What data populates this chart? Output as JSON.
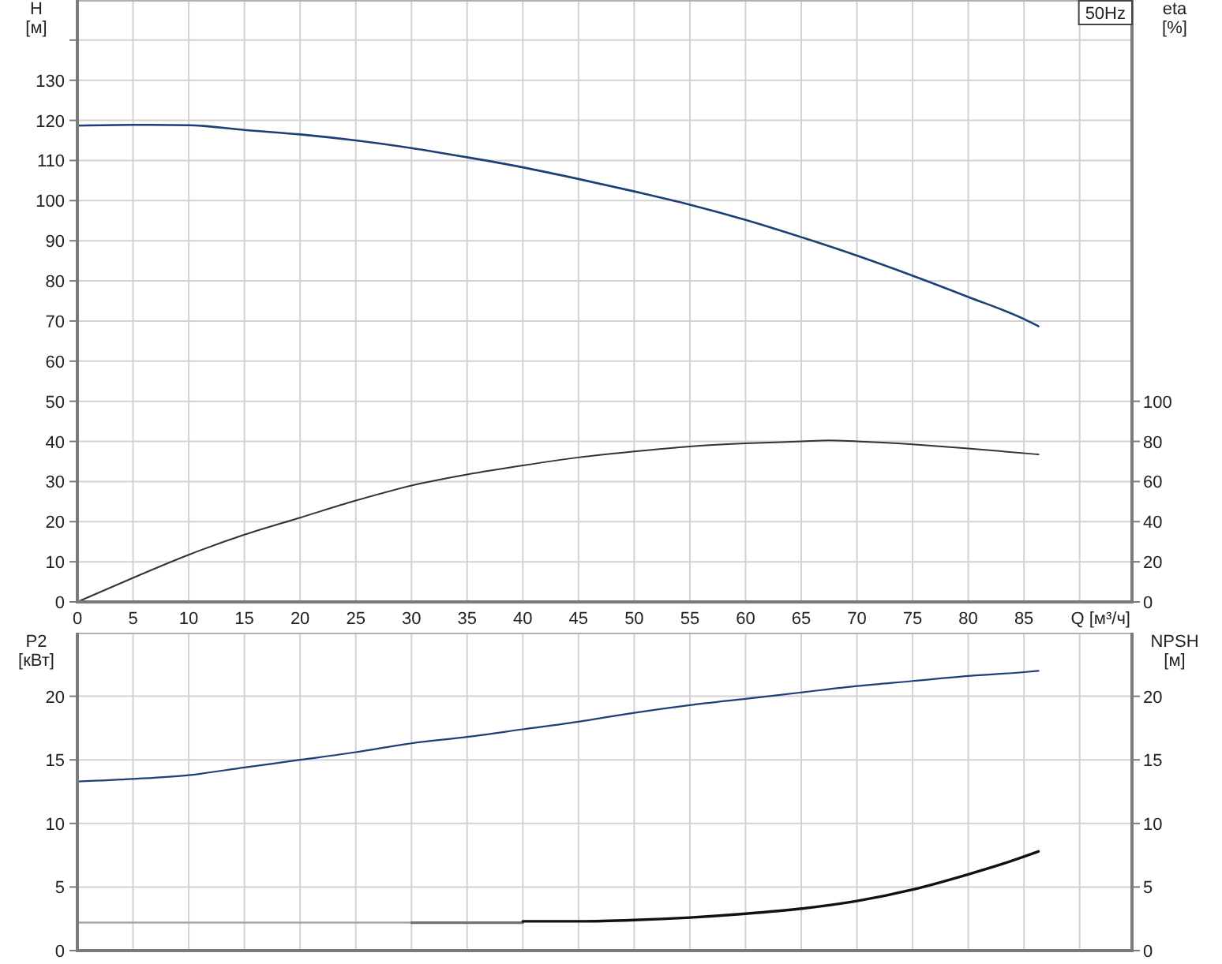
{
  "chart_data": [
    {
      "type": "line",
      "title": "50Hz",
      "xlabel": "Q [м³/ч]",
      "ylabel": "H\n[м]",
      "y2label": "eta\n[%]",
      "series": [
        {
          "color": "#1c3f78",
          "x": [
            0,
            5,
            10,
            15,
            20,
            25,
            30,
            35,
            40,
            45,
            50,
            55,
            60,
            65,
            70,
            75,
            80,
            85,
            86.3
          ],
          "values": [
            118.7,
            118.9,
            118.8,
            117.6,
            116.5,
            115,
            113.1,
            110.8,
            108.3,
            105.4,
            102.3,
            99,
            95.2,
            90.9,
            86.3,
            81.3,
            76,
            70.5,
            68.7
          ]
        },
        {
          "color": "#333333",
          "axis": "y2",
          "x": [
            0,
            5,
            10,
            15,
            20,
            25,
            30,
            35,
            40,
            45,
            50,
            55,
            60,
            65,
            67.5,
            70,
            75,
            80,
            86.3
          ],
          "values": [
            0,
            12,
            23.5,
            33.5,
            42,
            50.5,
            58,
            63.5,
            68,
            72,
            75,
            77.5,
            79,
            80,
            80.5,
            80,
            78.5,
            76.5,
            73.5
          ]
        }
      ],
      "xlim": [
        0,
        94.7
      ],
      "xticks": [
        0,
        5,
        10,
        15,
        20,
        25,
        30,
        35,
        40,
        45,
        50,
        55,
        60,
        65,
        70,
        75,
        80,
        85,
        {
          "value": 90,
          "label": null
        }
      ],
      "ylim": [
        0,
        150
      ],
      "yticks": [
        0,
        10,
        20,
        30,
        40,
        50,
        60,
        70,
        80,
        90,
        100,
        110,
        120,
        130,
        {
          "value": 140,
          "label": null
        }
      ],
      "y2lim": [
        0,
        300
      ],
      "y2ticks": [
        0,
        20,
        40,
        60,
        80,
        100
      ],
      "grid": true
    },
    {
      "type": "line",
      "ylabel": "P2\n[кВт]",
      "y2label": "NPSH\n[м]",
      "series": [
        {
          "color": "#1c3f78",
          "x": [
            0,
            5,
            10,
            15,
            20,
            25,
            30,
            35,
            40,
            45,
            50,
            55,
            60,
            65,
            70,
            75,
            80,
            85,
            86.3
          ],
          "values": [
            13.3,
            13.5,
            13.8,
            14.4,
            15,
            15.6,
            16.3,
            16.8,
            17.4,
            18,
            18.7,
            19.3,
            19.8,
            20.3,
            20.8,
            21.2,
            21.6,
            21.9,
            22
          ]
        },
        {
          "color": "#a6a6a6",
          "axis": "y2",
          "x": [
            0,
            30
          ],
          "values": [
            2.2,
            2.2
          ]
        },
        {
          "color": "#707070",
          "axis": "y2",
          "x": [
            30,
            40
          ],
          "values": [
            2.2,
            2.2
          ]
        },
        {
          "color": "#111111",
          "axis": "y2",
          "x": [
            40,
            45,
            50,
            55,
            60,
            65,
            70,
            75,
            80,
            83,
            86.3
          ],
          "values": [
            2.3,
            2.3,
            2.4,
            2.6,
            2.9,
            3.3,
            3.9,
            4.8,
            6,
            6.8,
            7.8
          ]
        }
      ],
      "xlim": [
        0,
        94.7
      ],
      "xticks": [
        0,
        5,
        10,
        15,
        20,
        25,
        30,
        35,
        40,
        45,
        50,
        55,
        60,
        65,
        70,
        75,
        80,
        85,
        90
      ],
      "ylim": [
        0,
        25
      ],
      "yticks": [
        0,
        5,
        10,
        15,
        20
      ],
      "y2lim": [
        0,
        25
      ],
      "y2ticks": [
        0,
        5,
        10,
        15,
        20
      ],
      "grid": true,
      "tick_labels": "y"
    }
  ]
}
